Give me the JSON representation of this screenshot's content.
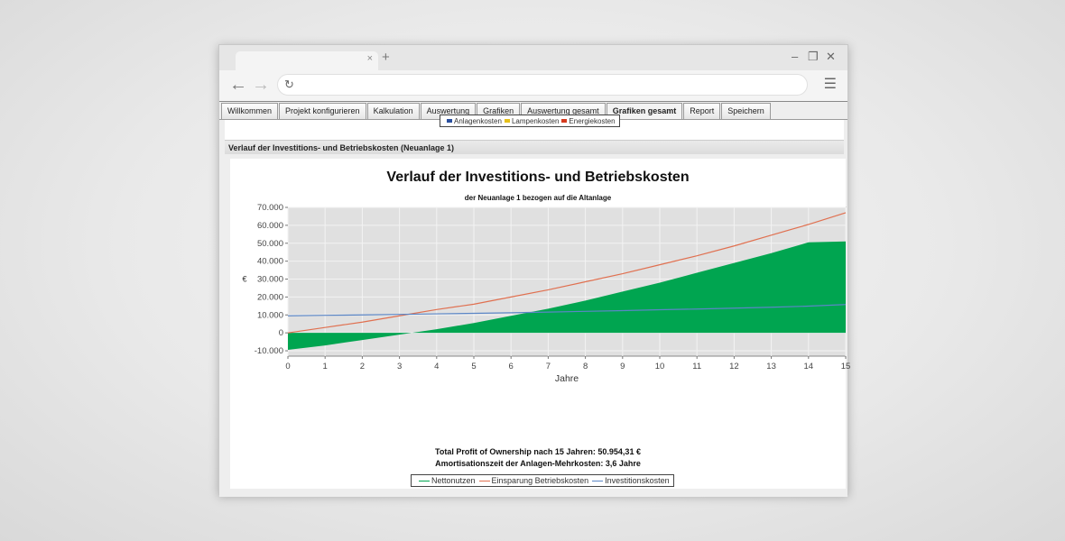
{
  "browser": {
    "tab_close": "×",
    "new_tab": "+",
    "minimize": "–",
    "restore": "❐",
    "close": "✕",
    "back": "←",
    "forward": "→",
    "reload": "↻",
    "menu": "☰"
  },
  "app_tabs": [
    {
      "label": "Willkommen"
    },
    {
      "label": "Projekt konfigurieren"
    },
    {
      "label": "Kalkulation"
    },
    {
      "label": "Auswertung"
    },
    {
      "label": "Grafiken"
    },
    {
      "label": "Auswertung gesamt"
    },
    {
      "label": "Grafiken gesamt",
      "active": true
    },
    {
      "label": "Report"
    },
    {
      "label": "Speichern"
    }
  ],
  "top_legend": {
    "items": [
      "Anlagenkosten",
      "Lampenkosten",
      "Energiekosten"
    ],
    "colors": [
      "#2a4f9e",
      "#e6c01a",
      "#d63a1e"
    ]
  },
  "section_header": "Verlauf der Investitions- und Betriebskosten (Neuanlage 1)",
  "chart_data": {
    "type": "area",
    "title": "Verlauf der Investitions- und Betriebskosten",
    "subtitle": "der Neuanlage 1 bezogen auf die Altanlage",
    "xlabel": "Jahre",
    "ylabel": "€",
    "xlim": [
      0,
      15
    ],
    "ylim": [
      -13000,
      70000
    ],
    "x_ticks": [
      "0",
      "1",
      "2",
      "3",
      "4",
      "5",
      "6",
      "7",
      "8",
      "9",
      "10",
      "11",
      "12",
      "13",
      "14",
      "15"
    ],
    "y_ticks": [
      {
        "label": "70.000",
        "value": 70000
      },
      {
        "label": "60.000",
        "value": 60000
      },
      {
        "label": "50.000",
        "value": 50000
      },
      {
        "label": "40.000",
        "value": 40000
      },
      {
        "label": "30.000",
        "value": 30000
      },
      {
        "label": "20.000",
        "value": 20000
      },
      {
        "label": "10.000",
        "value": 10000
      },
      {
        "label": "0",
        "value": 0
      },
      {
        "label": "-10.000",
        "value": -10000
      }
    ],
    "grid": true,
    "x": [
      0,
      1,
      2,
      3,
      4,
      5,
      6,
      7,
      8,
      9,
      10,
      11,
      12,
      13,
      14,
      15
    ],
    "series": [
      {
        "name": "Nettonutzen",
        "kind": "area",
        "color": "#00a550",
        "values": [
          -9500,
          -7000,
          -4000,
          -1000,
          2000,
          5500,
          9500,
          13500,
          18000,
          23000,
          28000,
          33500,
          39000,
          44500,
          50500,
          51000
        ]
      },
      {
        "name": "Einsparung Betriebskosten",
        "kind": "line",
        "color": "#e07050",
        "values": [
          0,
          3000,
          6000,
          9500,
          13000,
          16000,
          20000,
          24000,
          28500,
          33000,
          38000,
          43000,
          48500,
          54500,
          60500,
          67000
        ]
      },
      {
        "name": "Investitionskosten",
        "kind": "line",
        "color": "#5b86c6",
        "values": [
          9500,
          9800,
          10000,
          10300,
          10600,
          10900,
          11200,
          11600,
          12000,
          12400,
          12900,
          13300,
          13800,
          14300,
          14900,
          15800
        ]
      }
    ],
    "legend_placement": "bottom"
  },
  "info": {
    "line1": "Total Profit of Ownership nach 15 Jahren: 50.954,31 €",
    "line2": "Amortisationszeit der Anlagen-Mehrkosten: 3,6 Jahre"
  }
}
